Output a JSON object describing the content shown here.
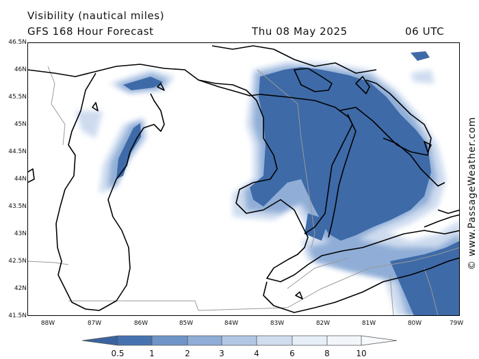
{
  "header": {
    "title_line1": "Visibility (nautical miles)",
    "title_line2": "GFS 168 Hour Forecast",
    "date": "Thu 08 May 2025",
    "time": "06 UTC"
  },
  "axes": {
    "lat_labels": [
      "46.5N",
      "46N",
      "45.5N",
      "45N",
      "44.5N",
      "44N",
      "43.5N",
      "43N",
      "42.5N",
      "42N",
      "41.5N"
    ],
    "lon_labels": [
      "88W",
      "87W",
      "86W",
      "85W",
      "84W",
      "83W",
      "82W",
      "81W",
      "80W",
      "79W"
    ]
  },
  "colorbar": {
    "labels": [
      "0.5",
      "1",
      "2",
      "3",
      "4",
      "6",
      "8",
      "10"
    ],
    "colors": [
      "#3a64a0",
      "#4673b0",
      "#6f94c8",
      "#8fadd6",
      "#b2c7e4",
      "#d0ddef",
      "#e6eef8",
      "#f7f9fd"
    ]
  },
  "credit": "© www.PassageWeather.com",
  "colors": {
    "low_vis": "#3a64a0",
    "mid_vis": "#8fadd6",
    "high_vis": "#d0ddef",
    "coast": "#000000",
    "border": "#999999"
  }
}
